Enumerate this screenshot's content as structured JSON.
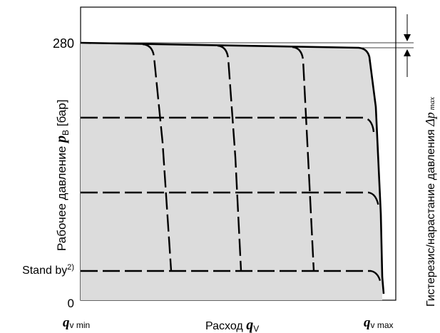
{
  "y_axis": {
    "label_prefix": "Рабочее давление ",
    "label_symbol": "p",
    "label_sub": "B",
    "label_unit": " [бар]",
    "tick_280": "280",
    "tick_standby": "Stand by",
    "tick_standby_sup": "2)",
    "tick_zero": "0"
  },
  "x_axis": {
    "label_prefix": "Расход ",
    "label_symbol": "q",
    "label_sub": "V",
    "min_symbol": "q",
    "min_sub": "v min",
    "max_symbol": "q",
    "max_sub": "v max"
  },
  "side_label": {
    "prefix": "Гистерезис/нарастание давления ",
    "symbol": "Δp",
    "sub": "max"
  },
  "colors": {
    "fill": "#dcdcdc",
    "line": "#000000"
  }
}
